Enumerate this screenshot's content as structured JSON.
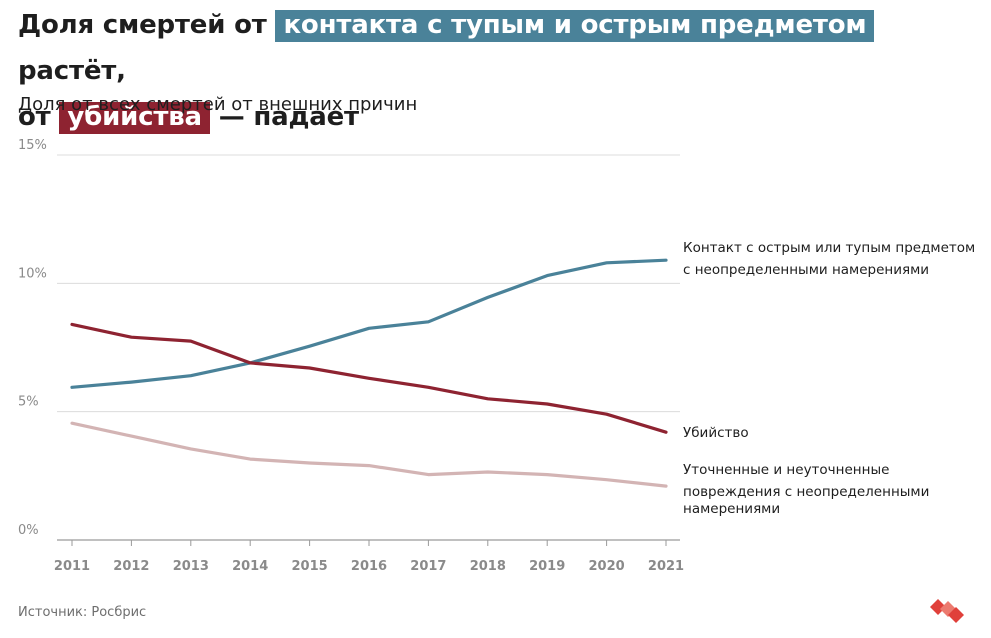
{
  "title": {
    "part1": "Доля смертей от",
    "highlight1": "контакта с тупым и острым предметом",
    "part2": "растёт,",
    "part3": "от",
    "highlight2": "убийства",
    "part4": "— падает"
  },
  "subtitle": "Доля от всех смертей от внешних причин",
  "source": "Источник: Росбрис",
  "colors": {
    "blue": "#4a8299",
    "red": "#8e2331",
    "pink": "#d3b4b4",
    "accent": "#e0403a"
  },
  "chart_data": {
    "type": "line",
    "x": [
      2011,
      2012,
      2013,
      2014,
      2015,
      2016,
      2017,
      2018,
      2019,
      2020,
      2021
    ],
    "ylim": [
      0,
      15
    ],
    "yticks": [
      0,
      5,
      10,
      15
    ],
    "ytick_labels": [
      "0%",
      "5%",
      "10%",
      "15%"
    ],
    "series": [
      {
        "name": "Контакт с острым или тупым предметом с неопределенными намерениями",
        "label_lines": [
          "Контакт с острым или тупым предметом",
          "с неопределенными намерениями"
        ],
        "color": "#4a8299",
        "values": [
          5.95,
          6.15,
          6.4,
          6.9,
          7.55,
          8.25,
          8.5,
          9.45,
          10.3,
          10.8,
          10.9
        ]
      },
      {
        "name": "Убийство",
        "label_lines": [
          "Убийство"
        ],
        "color": "#8e2331",
        "values": [
          8.4,
          7.9,
          7.75,
          6.9,
          6.7,
          6.3,
          5.95,
          5.5,
          5.3,
          4.9,
          4.2
        ]
      },
      {
        "name": "Уточненные и неуточненные повреждения с неопределенными намерениями",
        "label_lines": [
          "Уточненные и неуточненные",
          "повреждения с неопределенными",
          "намерениями"
        ],
        "color": "#d3b4b4",
        "values": [
          4.55,
          4.05,
          3.55,
          3.15,
          3.0,
          2.9,
          2.55,
          2.65,
          2.55,
          2.35,
          2.1
        ]
      }
    ]
  }
}
